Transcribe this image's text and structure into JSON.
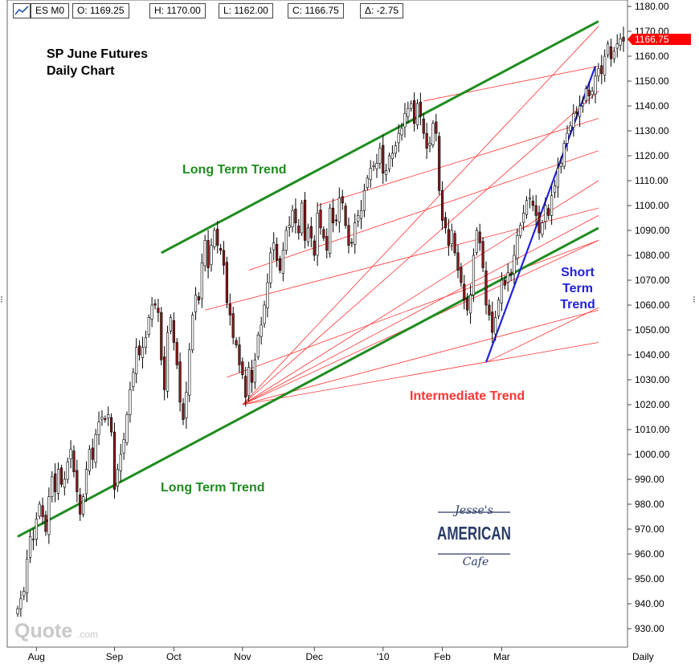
{
  "header": {
    "symbol": "ES M0",
    "open": "O: 1169.25",
    "high": "H: 1170.00",
    "low": "L: 1162.00",
    "close": "C: 1166.75",
    "change": "Δ: -2.75"
  },
  "price_tag": "1166.75",
  "period_label": "Daily",
  "watermark": {
    "quote": "Quote",
    "quote_suffix": ".com",
    "logo_top": "Jesse's",
    "logo_main": "AMERICAN",
    "logo_bottom": "Cafe"
  },
  "colors": {
    "long_term": "#1e8c1e",
    "intermediate": "#ff3333",
    "short_term": "#2222dd",
    "up_candle": "#ffffff",
    "down_candle": "#8b1a1a",
    "price_tag_bg": "#ff0000"
  },
  "chart_data": {
    "type": "candlestick",
    "title": "SP June Futures",
    "subtitle": "Daily Chart",
    "ylim": [
      928,
      1183
    ],
    "yticks": [
      "930.00",
      "940.00",
      "950.00",
      "960.00",
      "970.00",
      "980.00",
      "990.00",
      "1000.00",
      "1010.00",
      "1020.00",
      "1030.00",
      "1040.00",
      "1050.00",
      "1060.00",
      "1070.00",
      "1080.00",
      "1090.00",
      "1100.00",
      "1110.00",
      "1120.00",
      "1130.00",
      "1140.00",
      "1150.00",
      "1160.00",
      "1170.00",
      "1180.00"
    ],
    "xticks": [
      "Aug",
      "Sep",
      "Oct",
      "Nov",
      "Dec",
      "'10",
      "Feb",
      "Mar"
    ],
    "grid": false,
    "annotations": [
      {
        "text": "Long Term Trend",
        "color": "long_term"
      },
      {
        "text": "Long Term Trend",
        "color": "long_term"
      },
      {
        "text": "Intermediate Trend",
        "color": "intermediate"
      },
      {
        "text": "Short Term Trend",
        "color": "short_term"
      }
    ],
    "closes": [
      938,
      942,
      945,
      958,
      967,
      966,
      974,
      980,
      975,
      969,
      983,
      991,
      985,
      994,
      988,
      990,
      997,
      1002,
      993,
      985,
      976,
      983,
      994,
      1002,
      998,
      1008,
      1013,
      1015,
      1014,
      1016,
      1009,
      986,
      994,
      1000,
      1006,
      1016,
      1026,
      1033,
      1043,
      1040,
      1043,
      1047,
      1055,
      1060,
      1060,
      1057,
      1038,
      1026,
      1049,
      1055,
      1045,
      1036,
      1021,
      1014,
      1025,
      1042,
      1056,
      1064,
      1062,
      1077,
      1086,
      1075,
      1084,
      1090,
      1084,
      1082,
      1076,
      1061,
      1056,
      1047,
      1044,
      1036,
      1032,
      1023,
      1035,
      1029,
      1038,
      1048,
      1052,
      1060,
      1069,
      1081,
      1085,
      1078,
      1074,
      1082,
      1090,
      1092,
      1098,
      1093,
      1089,
      1101,
      1086,
      1091,
      1087,
      1080,
      1097,
      1091,
      1087,
      1082,
      1099,
      1093,
      1094,
      1103,
      1101,
      1092,
      1084,
      1085,
      1093,
      1096,
      1098,
      1106,
      1111,
      1115,
      1116,
      1117,
      1123,
      1113,
      1114,
      1120,
      1121,
      1124,
      1129,
      1131,
      1137,
      1139,
      1141,
      1133,
      1141,
      1136,
      1129,
      1123,
      1125,
      1133,
      1129,
      1106,
      1094,
      1091,
      1084,
      1090,
      1081,
      1074,
      1069,
      1062,
      1058,
      1064,
      1080,
      1090,
      1085,
      1075,
      1060,
      1056,
      1049,
      1055,
      1062,
      1070,
      1068,
      1073,
      1072,
      1080,
      1088,
      1092,
      1097,
      1102,
      1103,
      1100,
      1096,
      1089,
      1093,
      1100,
      1096,
      1104,
      1108,
      1115,
      1117,
      1125,
      1129,
      1132,
      1137,
      1137,
      1140,
      1141,
      1147,
      1144,
      1146,
      1152,
      1155,
      1153,
      1160,
      1165,
      1159,
      1162,
      1165,
      1167,
      1166
    ]
  }
}
